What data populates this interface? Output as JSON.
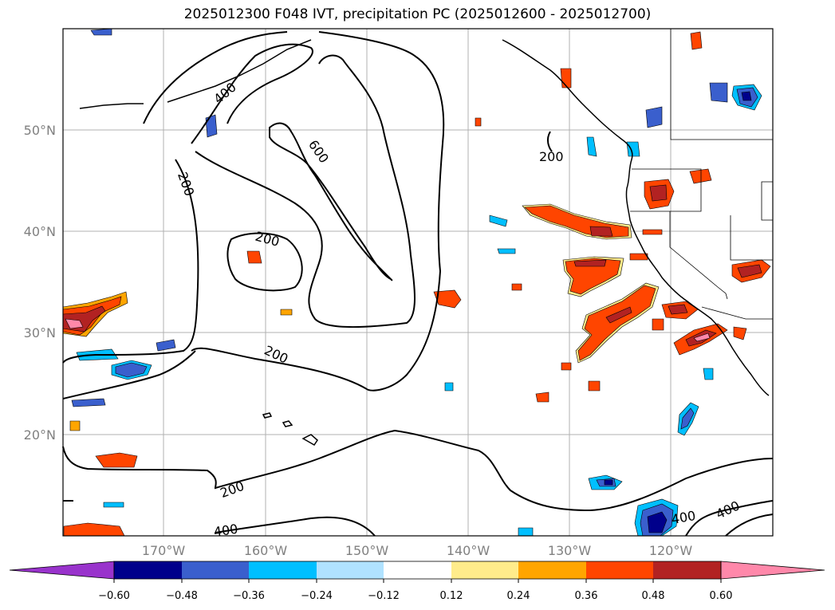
{
  "title": "2025012300 F048 IVT, precipitation PC (2025012600 - 2025012700)",
  "map": {
    "lon_range": [
      -180,
      -110
    ],
    "lat_range": [
      10,
      60
    ],
    "lat_ticks": [
      "20°N",
      "30°N",
      "40°N",
      "50°N"
    ],
    "lon_ticks": [
      "170°W",
      "160°W",
      "150°W",
      "140°W",
      "130°W",
      "120°W"
    ],
    "ivt_contour_levels": [
      200,
      400,
      600
    ],
    "contour_labels": [
      "400",
      "600",
      "200",
      "200",
      "200",
      "200",
      "200",
      "400",
      "400",
      "400"
    ]
  },
  "colorbar": {
    "ticks": [
      "−0.60",
      "−0.48",
      "−0.36",
      "−0.24",
      "−0.12",
      "0.12",
      "0.24",
      "0.36",
      "0.48",
      "0.60"
    ],
    "colors": [
      "#9933cc",
      "#00008b",
      "#3a5fcd",
      "#00bfff",
      "#b0e2ff",
      "#ffffff",
      "#ffec8b",
      "#ffa500",
      "#ff4500",
      "#b22222",
      "#ff88aa"
    ],
    "extend": "both"
  }
}
